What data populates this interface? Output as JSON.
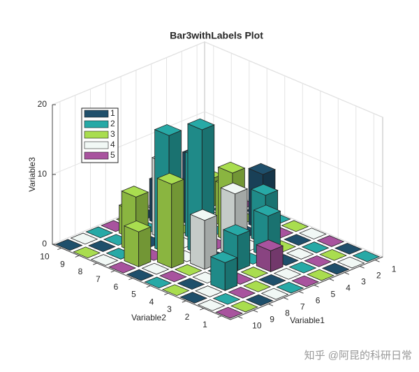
{
  "chart_data": {
    "type": "bar3",
    "title": "Bar3withLabels Plot",
    "xlabel": "Variable1",
    "ylabel": "Variable2",
    "zlabel": "Variable3",
    "x": [
      1,
      2,
      3,
      4,
      5,
      6,
      7,
      8,
      9,
      10
    ],
    "y": [
      1,
      2,
      3,
      4,
      5,
      6,
      7,
      8,
      9,
      10
    ],
    "zlim": [
      0,
      20
    ],
    "zticks": [
      0,
      10,
      20
    ],
    "grid": true,
    "series": [
      {
        "name": "1",
        "color": "#1f4f6b"
      },
      {
        "name": "2",
        "color": "#27a9a6"
      },
      {
        "name": "3",
        "color": "#a9dd4f"
      },
      {
        "name": "4",
        "color": "#f1f8f5"
      },
      {
        "name": "5",
        "color": "#a8539e"
      }
    ],
    "z": [
      [
        0,
        0,
        0,
        0,
        0,
        0,
        0,
        0,
        0,
        0
      ],
      [
        0,
        0,
        0,
        0,
        0,
        0,
        0,
        0,
        0,
        0
      ],
      [
        0,
        0,
        0,
        0,
        3,
        0,
        0,
        4,
        0,
        0
      ],
      [
        0,
        0,
        0,
        6,
        0,
        5,
        0,
        0,
        0,
        0
      ],
      [
        0,
        0,
        7,
        0,
        9,
        0,
        7,
        0,
        0,
        0
      ],
      [
        0,
        8,
        0,
        10,
        0,
        18,
        0,
        12,
        0,
        0
      ],
      [
        0,
        0,
        6,
        0,
        12,
        0,
        17,
        0,
        5,
        0
      ],
      [
        0,
        0,
        0,
        10,
        0,
        11,
        0,
        8,
        0,
        0
      ],
      [
        0,
        4,
        0,
        0,
        6,
        0,
        4,
        0,
        0,
        0
      ],
      [
        0,
        0,
        0,
        0,
        0,
        0,
        0,
        0,
        0,
        0
      ]
    ],
    "group": [
      [
        2,
        4,
        1,
        3,
        5,
        2,
        4,
        1,
        3,
        5
      ],
      [
        1,
        3,
        5,
        2,
        4,
        1,
        3,
        5,
        2,
        4
      ],
      [
        5,
        2,
        4,
        1,
        5,
        3,
        5,
        2,
        4,
        1
      ],
      [
        4,
        1,
        3,
        2,
        2,
        2,
        2,
        4,
        1,
        3
      ],
      [
        3,
        5,
        2,
        4,
        4,
        1,
        4,
        3,
        5,
        2
      ],
      [
        2,
        1,
        1,
        3,
        5,
        2,
        4,
        3,
        4,
        1
      ],
      [
        1,
        3,
        3,
        2,
        2,
        4,
        2,
        5,
        3,
        5
      ],
      [
        5,
        2,
        4,
        1,
        3,
        4,
        1,
        3,
        2,
        4
      ],
      [
        4,
        3,
        3,
        5,
        1,
        2,
        3,
        2,
        1,
        3
      ],
      [
        3,
        5,
        2,
        4,
        1,
        3,
        5,
        2,
        4,
        1
      ]
    ]
  },
  "watermark": "知乎 @阿昆的科研日常"
}
